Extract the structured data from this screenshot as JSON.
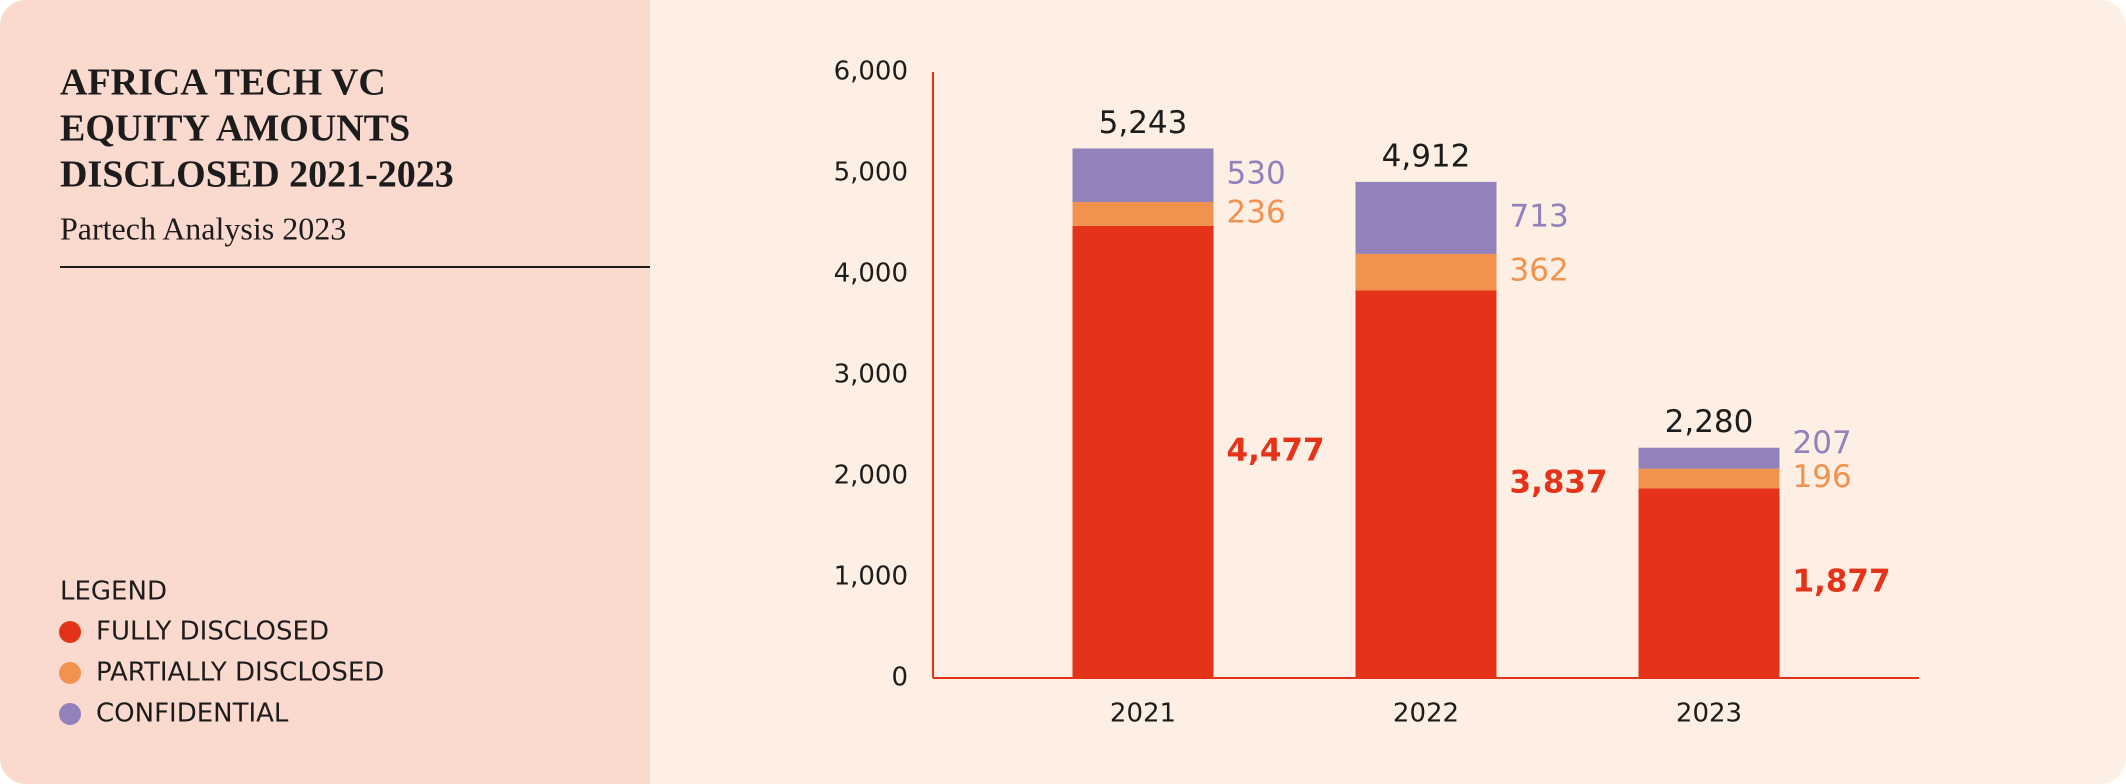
{
  "chart_data": {
    "type": "bar",
    "stacked": true,
    "title": [
      "AFRICA TECH VC",
      "EQUITY AMOUNTS",
      "DISCLOSED 2021-2023"
    ],
    "subtitle": "Partech Analysis 2023",
    "legend_title": "LEGEND",
    "categories": [
      "2021",
      "2022",
      "2023"
    ],
    "series": [
      {
        "name": "FULLY DISCLOSED",
        "color": "#e5331a",
        "values": [
          4477,
          3837,
          1877
        ],
        "value_labels": [
          "4,477",
          "3,837",
          "1,877"
        ]
      },
      {
        "name": "PARTIALLY DISCLOSED",
        "color": "#f2924f",
        "values": [
          236,
          362,
          196
        ]
      },
      {
        "name": "CONFIDENTIAL",
        "color": "#9281bb",
        "values": [
          530,
          713,
          207
        ]
      }
    ],
    "totals": {
      "values": [
        5243,
        4912,
        2280
      ],
      "value_labels": [
        "5,243",
        "4,912",
        "2,280"
      ]
    },
    "ylim": [
      0,
      6000
    ],
    "yticks": [
      0,
      {
        "value": 1000,
        "label": "1,000"
      },
      {
        "value": 2000,
        "label": "2,000"
      },
      {
        "value": 3000,
        "label": "3,000"
      },
      {
        "value": 4000,
        "label": "4,000"
      },
      {
        "value": 5000,
        "label": "5,000"
      },
      {
        "value": 6000,
        "label": "6,000"
      }
    ],
    "grid": false
  }
}
